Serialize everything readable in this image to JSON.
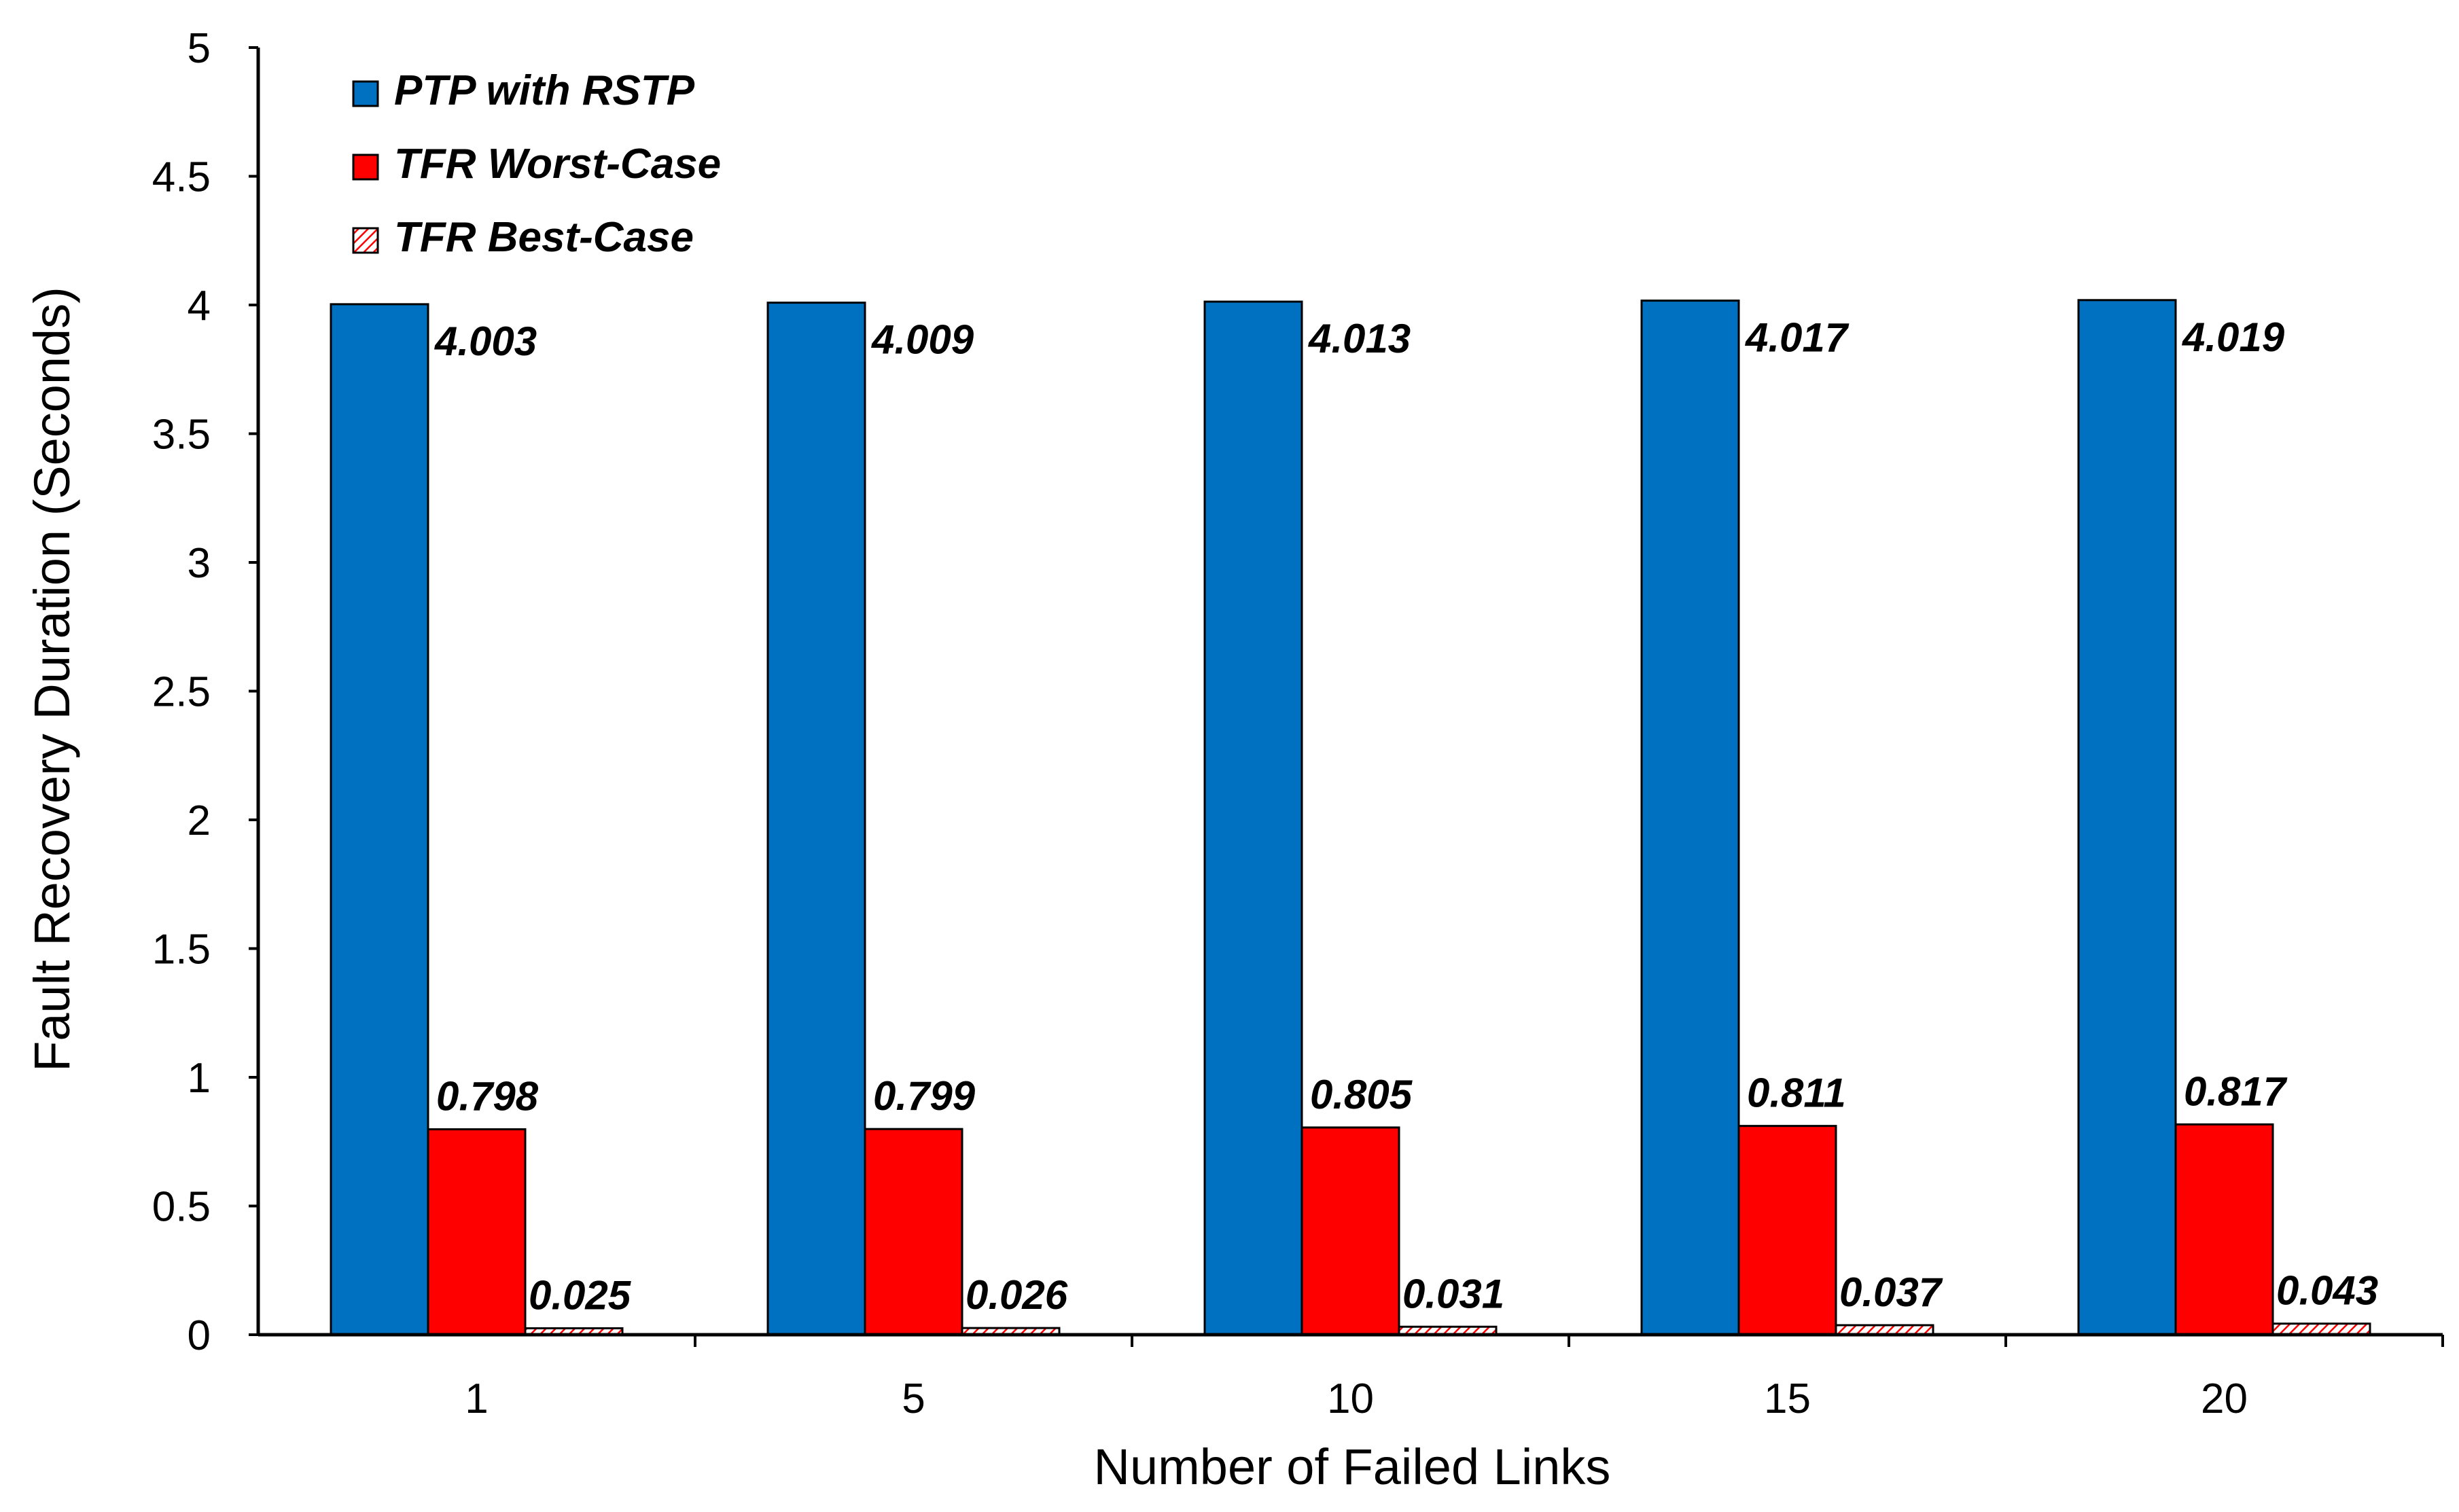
{
  "chart_data": {
    "type": "bar",
    "categories": [
      "1",
      "5",
      "10",
      "15",
      "20"
    ],
    "series": [
      {
        "name": "PTP with RSTP",
        "values": [
          4.003,
          4.009,
          4.013,
          4.017,
          4.019
        ],
        "labels": [
          "4.003",
          "4.009",
          "4.013",
          "4.017",
          "4.019"
        ],
        "color": "#0070C0",
        "pattern": "solid"
      },
      {
        "name": "TFR Worst-Case",
        "values": [
          0.798,
          0.799,
          0.805,
          0.811,
          0.817
        ],
        "labels": [
          "0.798",
          "0.799",
          "0.805",
          "0.811",
          "0.817"
        ],
        "color": "#FF0000",
        "pattern": "solid"
      },
      {
        "name": "TFR Best-Case",
        "values": [
          0.025,
          0.026,
          0.031,
          0.037,
          0.043
        ],
        "labels": [
          "0.025",
          "0.026",
          "0.031",
          "0.037",
          "0.043"
        ],
        "color": "#FF0000",
        "pattern": "hatched"
      }
    ],
    "xlabel": "Number of Failed Links",
    "ylabel": "Fault Recovery Duration (Seconds)",
    "ylim": [
      0,
      5
    ],
    "yticks": [
      "0",
      "0.5",
      "1",
      "1.5",
      "2",
      "2.5",
      "3",
      "3.5",
      "4",
      "4.5",
      "5"
    ],
    "grid": false,
    "legend_position": "top-left"
  }
}
